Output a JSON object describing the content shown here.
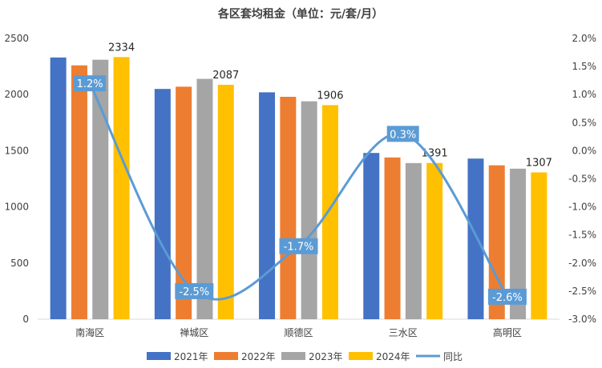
{
  "chart_data": {
    "type": "bar",
    "title": "各区套均租金（单位：元/套/月）",
    "categories": [
      "南海区",
      "禅城区",
      "顺德区",
      "三水区",
      "高明区"
    ],
    "series": [
      {
        "name": "2021年",
        "color": "#4472C4",
        "values": [
          2330,
          2050,
          2020,
          1480,
          1430
        ]
      },
      {
        "name": "2022年",
        "color": "#ED7D31",
        "values": [
          2260,
          2070,
          1980,
          1440,
          1370
        ]
      },
      {
        "name": "2023年",
        "color": "#A5A5A5",
        "values": [
          2310,
          2140,
          1940,
          1390,
          1340
        ]
      },
      {
        "name": "2024年",
        "color": "#FFC000",
        "values": [
          2334,
          2087,
          1906,
          1391,
          1307
        ]
      }
    ],
    "bar_data_labels": [
      "2334",
      "2087",
      "1906",
      "1391",
      "1307"
    ],
    "line_series": {
      "name": "同比",
      "color": "#5B9BD5",
      "values": [
        1.2,
        -2.5,
        -1.7,
        0.3,
        -2.6
      ],
      "labels": [
        "1.2%",
        "-2.5%",
        "-1.7%",
        "0.3%",
        "-2.6%"
      ]
    },
    "ylim": [
      0,
      2500
    ],
    "y_ticks": [
      "0",
      "500",
      "1000",
      "1500",
      "2000",
      "2500"
    ],
    "y2lim": [
      -3.0,
      2.0
    ],
    "y2_ticks": [
      "-3.0%",
      "-2.5%",
      "-2.0%",
      "-1.5%",
      "-1.0%",
      "-0.5%",
      "0.0%",
      "0.5%",
      "1.0%",
      "1.5%",
      "2.0%"
    ],
    "grid": false,
    "legend_position": "bottom"
  }
}
